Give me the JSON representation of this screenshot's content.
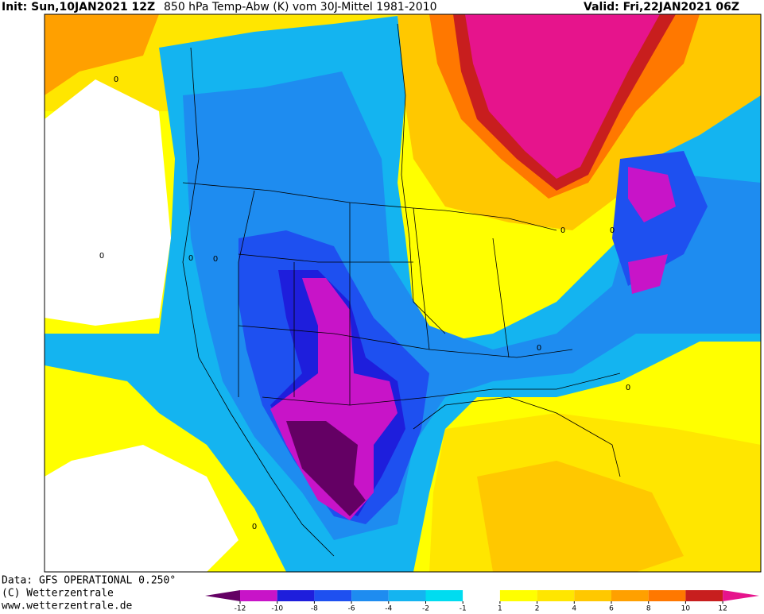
{
  "header": {
    "init": "Init: Sun,10JAN2021 12Z",
    "title": "850 hPa Temp-Abw (K) vom 30J-Mittel 1981-2010",
    "valid": "Valid: Fri,22JAN2021 06Z"
  },
  "footer": [
    "Data: GFS OPERATIONAL 0.250°",
    "(C) Wetterzentrale",
    "www.wetterzentrale.de"
  ],
  "map": {
    "contour_labels": [
      0,
      0,
      0,
      0,
      0,
      0,
      0,
      0,
      0
    ]
  },
  "colorbar": {
    "ticks": [
      -12,
      -10,
      -8,
      -6,
      -4,
      -2,
      -1,
      1,
      2,
      4,
      6,
      8,
      10,
      12
    ],
    "colors": [
      "#640064",
      "#c814c8",
      "#1e1edc",
      "#1e50f0",
      "#1e8cf0",
      "#14b4f0",
      "#00dcf0",
      "#ffffff",
      "#ffff00",
      "#ffe600",
      "#ffc800",
      "#ffa000",
      "#ff7800",
      "#c81e1e",
      "#e6148c"
    ]
  }
}
